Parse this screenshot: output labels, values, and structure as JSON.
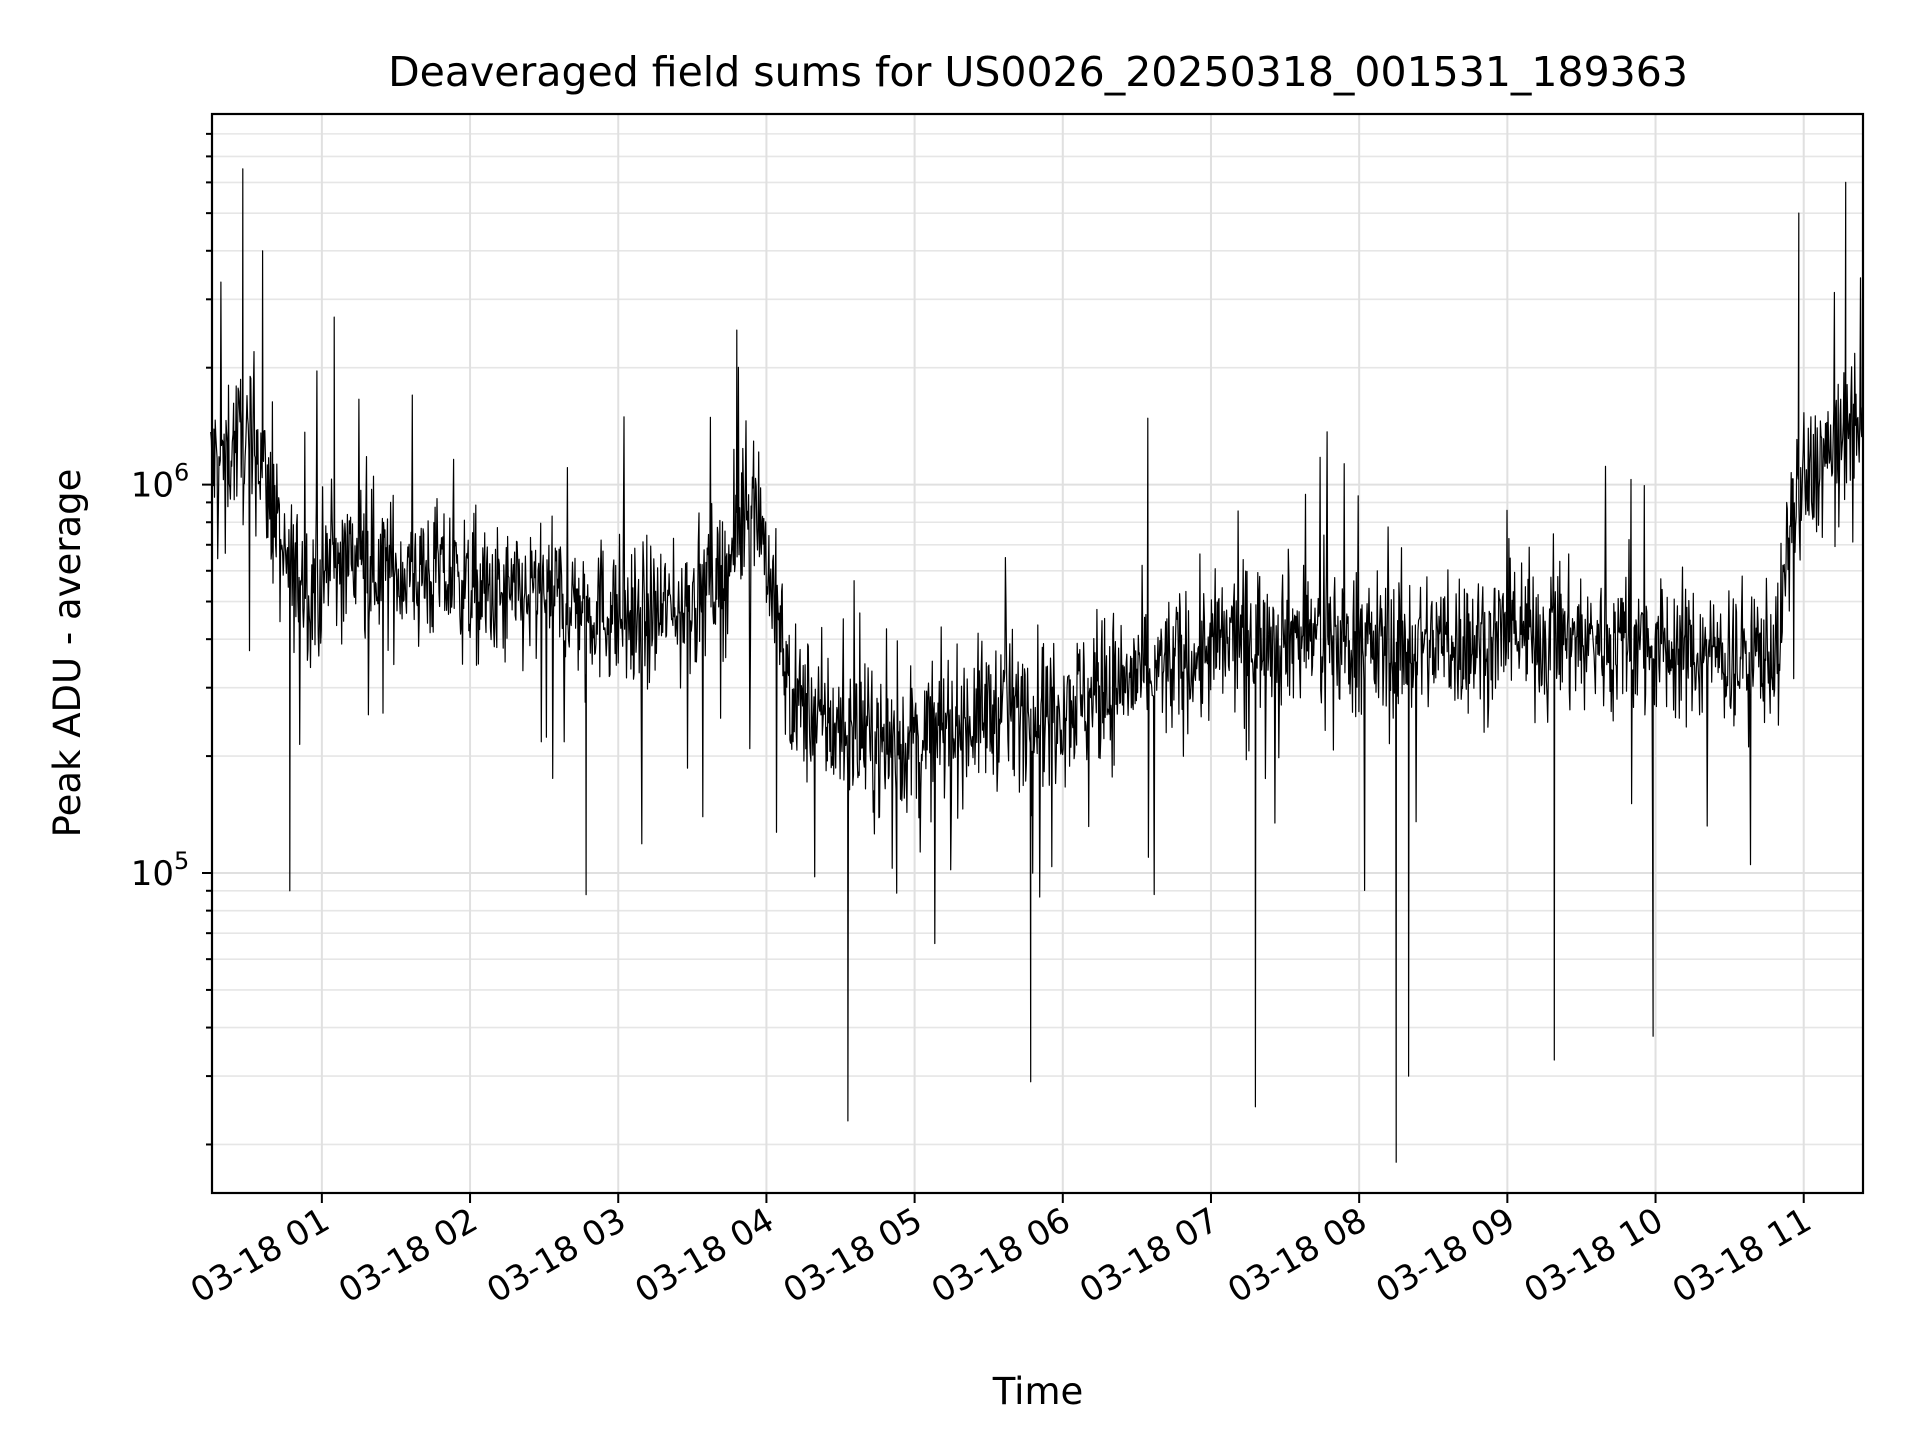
{
  "chart_data": {
    "type": "line",
    "title": "Deaveraged field sums for US0026_20250318_001531_189363",
    "xlabel": "Time",
    "ylabel": "Peak ADU - average",
    "yscale": "log",
    "xlim": [
      "2025-03-18 00:15:31",
      "2025-03-18 11:24:00"
    ],
    "ylim": [
      15000,
      9000000
    ],
    "grid": true,
    "legend": "none",
    "line_color": "#000000",
    "x_ticks": [
      {
        "value": "2025-03-18 01:00",
        "label": "03-18 01"
      },
      {
        "value": "2025-03-18 02:00",
        "label": "03-18 02"
      },
      {
        "value": "2025-03-18 03:00",
        "label": "03-18 03"
      },
      {
        "value": "2025-03-18 04:00",
        "label": "03-18 04"
      },
      {
        "value": "2025-03-18 05:00",
        "label": "03-18 05"
      },
      {
        "value": "2025-03-18 06:00",
        "label": "03-18 06"
      },
      {
        "value": "2025-03-18 07:00",
        "label": "03-18 07"
      },
      {
        "value": "2025-03-18 08:00",
        "label": "03-18 08"
      },
      {
        "value": "2025-03-18 09:00",
        "label": "03-18 09"
      },
      {
        "value": "2025-03-18 10:00",
        "label": "03-18 10"
      },
      {
        "value": "2025-03-18 11:00",
        "label": "03-18 11"
      }
    ],
    "y_ticks": [
      {
        "value": 100000,
        "base": "10",
        "exp": "5"
      },
      {
        "value": 1000000,
        "base": "10",
        "exp": "6"
      }
    ],
    "series": [
      {
        "x": [
          "2025-03-18 00:15",
          "2025-03-18 00:25",
          "2025-03-18 00:35",
          "2025-03-18 00:45",
          "2025-03-18 00:55",
          "2025-03-18 01:10",
          "2025-03-18 01:30",
          "2025-03-18 01:50",
          "2025-03-18 02:10",
          "2025-03-18 02:30",
          "2025-03-18 02:50",
          "2025-03-18 03:10",
          "2025-03-18 03:30",
          "2025-03-18 03:45",
          "2025-03-18 03:55",
          "2025-03-18 04:10",
          "2025-03-18 04:30",
          "2025-03-18 04:50",
          "2025-03-18 05:10",
          "2025-03-18 05:30",
          "2025-03-18 05:50",
          "2025-03-18 06:10",
          "2025-03-18 06:30",
          "2025-03-18 06:50",
          "2025-03-18 07:10",
          "2025-03-18 07:30",
          "2025-03-18 07:50",
          "2025-03-18 08:10",
          "2025-03-18 08:30",
          "2025-03-18 08:50",
          "2025-03-18 09:10",
          "2025-03-18 09:30",
          "2025-03-18 09:50",
          "2025-03-18 10:10",
          "2025-03-18 10:30",
          "2025-03-18 10:50",
          "2025-03-18 10:55",
          "2025-03-18 11:05",
          "2025-03-18 11:15",
          "2025-03-18 11:24"
        ],
        "y": [
          1100000,
          1300000,
          1200000,
          600000,
          550000,
          650000,
          600000,
          580000,
          500000,
          520000,
          480000,
          450000,
          500000,
          620000,
          1000000,
          280000,
          230000,
          210000,
          230000,
          260000,
          270000,
          280000,
          320000,
          350000,
          400000,
          420000,
          400000,
          380000,
          390000,
          400000,
          410000,
          400000,
          390000,
          370000,
          360000,
          380000,
          850000,
          1100000,
          1300000,
          1400000
        ],
        "spikes_up": [
          {
            "x": "2025-03-18 00:28",
            "y": 6500000
          },
          {
            "x": "2025-03-18 00:36",
            "y": 4000000
          },
          {
            "x": "2025-03-18 01:05",
            "y": 2700000
          },
          {
            "x": "2025-03-18 03:48",
            "y": 2500000
          },
          {
            "x": "2025-03-18 10:58",
            "y": 5000000
          },
          {
            "x": "2025-03-18 11:17",
            "y": 6000000
          }
        ],
        "spikes_down": [
          {
            "x": "2025-03-18 00:47",
            "y": 90000
          },
          {
            "x": "2025-03-18 02:47",
            "y": 88000
          },
          {
            "x": "2025-03-18 04:33",
            "y": 23000
          },
          {
            "x": "2025-03-18 05:47",
            "y": 29000
          },
          {
            "x": "2025-03-18 07:18",
            "y": 25000
          },
          {
            "x": "2025-03-18 08:15",
            "y": 18000
          },
          {
            "x": "2025-03-18 08:20",
            "y": 30000
          },
          {
            "x": "2025-03-18 09:19",
            "y": 33000
          },
          {
            "x": "2025-03-18 09:59",
            "y": 38000
          }
        ]
      }
    ]
  }
}
